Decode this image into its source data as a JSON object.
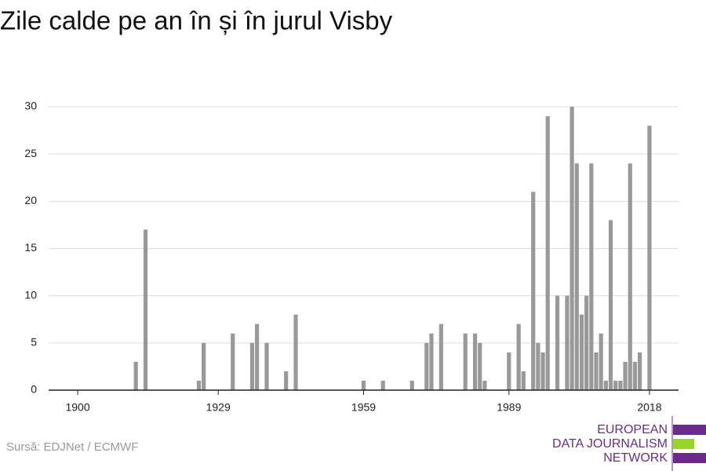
{
  "chart_data": {
    "type": "bar",
    "title": "Zile calde pe an în și în jurul Visby",
    "x": [
      1912,
      1914,
      1925,
      1926,
      1932,
      1936,
      1937,
      1939,
      1943,
      1945,
      1959,
      1963,
      1969,
      1972,
      1973,
      1975,
      1980,
      1982,
      1983,
      1984,
      1989,
      1991,
      1992,
      1994,
      1995,
      1996,
      1997,
      1999,
      2001,
      2002,
      2003,
      2004,
      2005,
      2006,
      2007,
      2008,
      2009,
      2010,
      2011,
      2012,
      2013,
      2014,
      2015,
      2016,
      2018
    ],
    "values": [
      3,
      17,
      1,
      5,
      6,
      5,
      7,
      5,
      2,
      8,
      1,
      1,
      1,
      5,
      6,
      7,
      6,
      6,
      5,
      1,
      4,
      7,
      2,
      21,
      5,
      4,
      29,
      10,
      10,
      30,
      24,
      8,
      10,
      24,
      4,
      6,
      1,
      18,
      1,
      1,
      3,
      24,
      3,
      4,
      28
    ],
    "color": "#999999",
    "xlim": [
      1894,
      2024
    ],
    "xticks": [
      1900,
      1929,
      1959,
      1989,
      2018
    ],
    "ylim": [
      0,
      30
    ],
    "yticks": [
      0,
      5,
      10,
      15,
      20,
      25,
      30
    ],
    "grid": true,
    "source": "Sursă: EDJNet / ECMWF",
    "logo": [
      "EUROPEAN",
      "DATA JOURNALISM",
      "NETWORK"
    ]
  }
}
